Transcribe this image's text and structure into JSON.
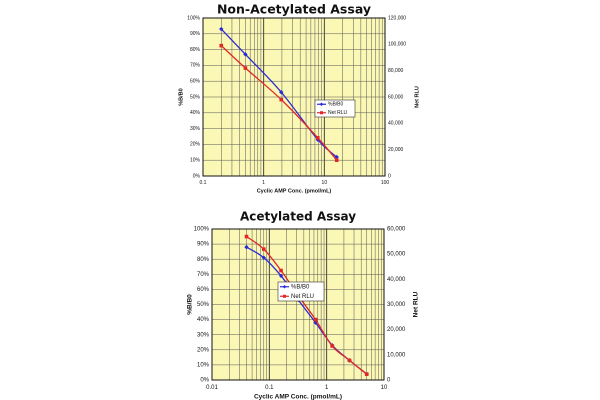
{
  "chart_data": [
    {
      "type": "line",
      "title": "Non-Acetylated Assay",
      "xlabel": "Cyclic AMP Conc. (pmol/mL)",
      "ylabel_left": "%B/B0",
      "ylabel_right": "Net RLU",
      "x_scale": "log",
      "xlim": [
        0.1,
        100
      ],
      "x_ticks": [
        0.1,
        1,
        10,
        100
      ],
      "x_tick_labels": [
        "0.1",
        "1",
        "10",
        "100"
      ],
      "ylim_left": [
        0,
        100
      ],
      "y_left_ticks": [
        0,
        10,
        20,
        30,
        40,
        50,
        60,
        70,
        80,
        90,
        100
      ],
      "y_left_tick_labels": [
        "0%",
        "10%",
        "20%",
        "30%",
        "40%",
        "50%",
        "60%",
        "70%",
        "80%",
        "90%",
        "100%"
      ],
      "ylim_right": [
        0,
        120000
      ],
      "y_right_ticks": [
        0,
        20000,
        40000,
        60000,
        80000,
        100000,
        120000
      ],
      "y_right_tick_labels": [
        "0",
        "20,000",
        "40,000",
        "60,000",
        "80,000",
        "100,000",
        "120,000"
      ],
      "grid": true,
      "legend_position": "center-right",
      "series": [
        {
          "name": "%B/B0",
          "axis": "left",
          "color": "#2b2bd6",
          "marker": "diamond",
          "points": [
            [
              0.2,
              93
            ],
            [
              0.5,
              77
            ],
            [
              1.95,
              53
            ],
            [
              7.8,
              23
            ],
            [
              16,
              12
            ]
          ]
        },
        {
          "name": "Net RLU",
          "axis": "right",
          "color": "#e02828",
          "marker": "square",
          "points": [
            [
              0.2,
              99000
            ],
            [
              0.5,
              82000
            ],
            [
              1.95,
              58000
            ],
            [
              7.8,
              29000
            ],
            [
              16,
              12000
            ]
          ]
        }
      ]
    },
    {
      "type": "line",
      "title": "Acetylated Assay",
      "xlabel": "Cyclic AMP Conc. (pmol/mL)",
      "ylabel_left": "%B/B0",
      "ylabel_right": "Net RLU",
      "x_scale": "log",
      "xlim": [
        0.01,
        10
      ],
      "x_ticks": [
        0.01,
        0.1,
        1,
        10
      ],
      "x_tick_labels": [
        "0.01",
        "0.1",
        "1",
        "10"
      ],
      "ylim_left": [
        0,
        100
      ],
      "y_left_ticks": [
        0,
        10,
        20,
        30,
        40,
        50,
        60,
        70,
        80,
        90,
        100
      ],
      "y_left_tick_labels": [
        "0%",
        "10%",
        "20%",
        "30%",
        "40%",
        "50%",
        "60%",
        "70%",
        "80%",
        "90%",
        "100%"
      ],
      "ylim_right": [
        0,
        60000
      ],
      "y_right_ticks": [
        0,
        10000,
        20000,
        30000,
        40000,
        50000,
        60000
      ],
      "y_right_tick_labels": [
        "0",
        "10,000",
        "20,000",
        "30,000",
        "40,000",
        "50,000",
        "60,000"
      ],
      "grid": true,
      "legend_position": "center-right",
      "series": [
        {
          "name": "%B/B0",
          "axis": "left",
          "color": "#2b2bd6",
          "marker": "diamond",
          "points": [
            [
              0.04,
              88
            ],
            [
              0.08,
              81
            ],
            [
              0.16,
              69
            ],
            [
              0.32,
              53
            ],
            [
              0.64,
              38
            ],
            [
              1.25,
              23
            ],
            [
              2.5,
              13
            ],
            [
              5,
              4
            ]
          ]
        },
        {
          "name": "Net RLU",
          "axis": "right",
          "color": "#e02828",
          "marker": "square",
          "points": [
            [
              0.04,
              57000
            ],
            [
              0.08,
              52000
            ],
            [
              0.16,
              43500
            ],
            [
              0.32,
              33500
            ],
            [
              0.64,
              24000
            ],
            [
              1.25,
              13500
            ],
            [
              2.5,
              7800
            ],
            [
              5,
              2300
            ]
          ]
        }
      ]
    }
  ]
}
